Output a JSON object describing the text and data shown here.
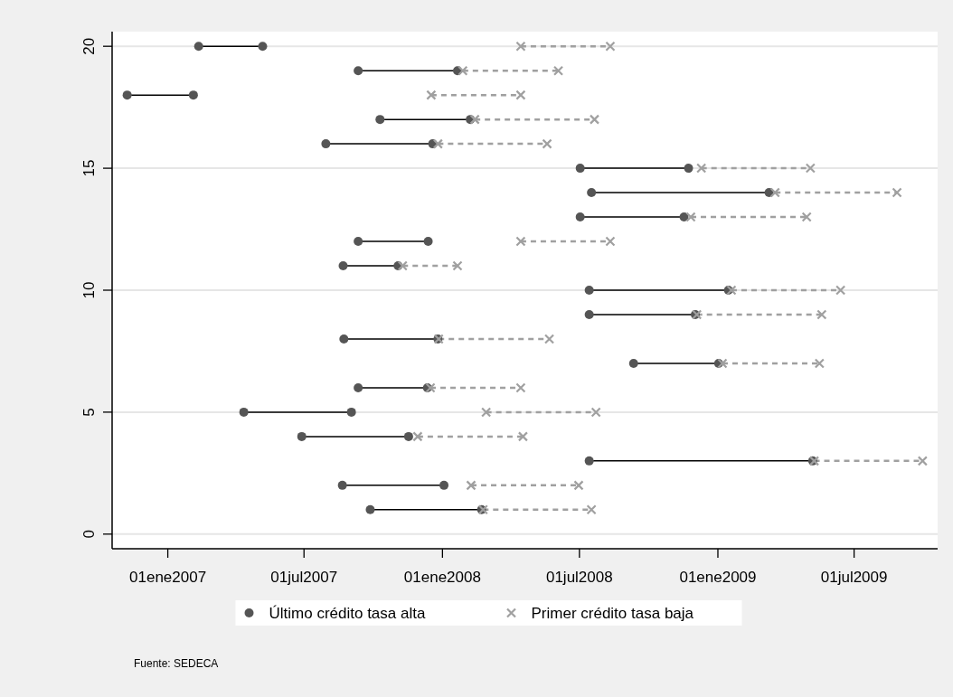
{
  "chart_data": {
    "type": "scatter",
    "xlim": [
      "2006-10-19",
      "2009-10-20"
    ],
    "ylim": [
      -0.6,
      20.6
    ],
    "xticks": [
      {
        "value": "2007-01-01",
        "label": "01ene2007"
      },
      {
        "value": "2007-07-01",
        "label": "01jul2007"
      },
      {
        "value": "2008-01-01",
        "label": "01ene2008"
      },
      {
        "value": "2008-07-01",
        "label": "01jul2008"
      },
      {
        "value": "2009-01-01",
        "label": "01ene2009"
      },
      {
        "value": "2009-07-01",
        "label": "01jul2009"
      }
    ],
    "yticks": [
      0,
      5,
      10,
      15,
      20
    ],
    "grid": "y",
    "legend": "bottom",
    "annotations": [
      "Fuente: SEDECA"
    ],
    "series": [
      {
        "type": "line",
        "color": "#000000",
        "line_style": "solid",
        "x": [
          "2007-02-11",
          "2007-05-07"
        ],
        "values": [
          20,
          20
        ]
      },
      {
        "type": "line",
        "color": "#000000",
        "line_style": "solid",
        "x": [
          "2007-09-11",
          "2008-01-21"
        ],
        "values": [
          19,
          19
        ]
      },
      {
        "type": "line",
        "color": "#000000",
        "line_style": "solid",
        "x": [
          "2006-11-08",
          "2007-02-04"
        ],
        "values": [
          18,
          18
        ]
      },
      {
        "type": "line",
        "color": "#000000",
        "line_style": "solid",
        "x": [
          "2007-10-10",
          "2008-02-07"
        ],
        "values": [
          17,
          17
        ]
      },
      {
        "type": "line",
        "color": "#000000",
        "line_style": "solid",
        "x": [
          "2007-07-30",
          "2007-12-19"
        ],
        "values": [
          16,
          16
        ]
      },
      {
        "type": "line",
        "color": "#000000",
        "line_style": "solid",
        "x": [
          "2008-07-02",
          "2008-11-23"
        ],
        "values": [
          15,
          15
        ]
      },
      {
        "type": "line",
        "color": "#000000",
        "line_style": "solid",
        "x": [
          "2008-07-17",
          "2009-03-10"
        ],
        "values": [
          14,
          14
        ]
      },
      {
        "type": "line",
        "color": "#000000",
        "line_style": "solid",
        "x": [
          "2008-07-02",
          "2008-11-17"
        ],
        "values": [
          13,
          13
        ]
      },
      {
        "type": "line",
        "color": "#000000",
        "line_style": "solid",
        "x": [
          "2007-09-11",
          "2007-12-13"
        ],
        "values": [
          12,
          12
        ]
      },
      {
        "type": "line",
        "color": "#000000",
        "line_style": "solid",
        "x": [
          "2007-08-22",
          "2007-11-03"
        ],
        "values": [
          11,
          11
        ]
      },
      {
        "type": "line",
        "color": "#000000",
        "line_style": "solid",
        "x": [
          "2008-07-14",
          "2009-01-15"
        ],
        "values": [
          10,
          10
        ]
      },
      {
        "type": "line",
        "color": "#000000",
        "line_style": "solid",
        "x": [
          "2008-07-14",
          "2008-12-02"
        ],
        "values": [
          9,
          9
        ]
      },
      {
        "type": "line",
        "color": "#000000",
        "line_style": "solid",
        "x": [
          "2007-08-23",
          "2007-12-26"
        ],
        "values": [
          8,
          8
        ]
      },
      {
        "type": "line",
        "color": "#000000",
        "line_style": "solid",
        "x": [
          "2008-09-11",
          "2009-01-02"
        ],
        "values": [
          7,
          7
        ]
      },
      {
        "type": "line",
        "color": "#000000",
        "line_style": "solid",
        "x": [
          "2007-09-11",
          "2007-12-12"
        ],
        "values": [
          6,
          6
        ]
      },
      {
        "type": "line",
        "color": "#000000",
        "line_style": "solid",
        "x": [
          "2007-04-12",
          "2007-09-02"
        ],
        "values": [
          5,
          5
        ]
      },
      {
        "type": "line",
        "color": "#000000",
        "line_style": "solid",
        "x": [
          "2007-06-28",
          "2007-11-17"
        ],
        "values": [
          4,
          4
        ]
      },
      {
        "type": "line",
        "color": "#000000",
        "line_style": "solid",
        "x": [
          "2008-07-14",
          "2009-05-07"
        ],
        "values": [
          3,
          3
        ]
      },
      {
        "type": "line",
        "color": "#000000",
        "line_style": "solid",
        "x": [
          "2007-08-21",
          "2008-01-03"
        ],
        "values": [
          2,
          2
        ]
      },
      {
        "type": "line",
        "color": "#000000",
        "line_style": "solid",
        "x": [
          "2007-09-27",
          "2008-02-22"
        ],
        "values": [
          1,
          1
        ]
      },
      {
        "type": "line",
        "color": "#a0a0a0",
        "line_style": "dashed",
        "x": [
          "2008-04-14",
          "2008-08-11"
        ],
        "values": [
          20,
          20
        ]
      },
      {
        "type": "line",
        "color": "#a0a0a0",
        "line_style": "dashed",
        "x": [
          "2008-01-28",
          "2008-06-03"
        ],
        "values": [
          19,
          19
        ]
      },
      {
        "type": "line",
        "color": "#a0a0a0",
        "line_style": "dashed",
        "x": [
          "2007-12-17",
          "2008-04-14"
        ],
        "values": [
          18,
          18
        ]
      },
      {
        "type": "line",
        "color": "#a0a0a0",
        "line_style": "dashed",
        "x": [
          "2008-02-13",
          "2008-07-21"
        ],
        "values": [
          17,
          17
        ]
      },
      {
        "type": "line",
        "color": "#a0a0a0",
        "line_style": "dashed",
        "x": [
          "2007-12-26",
          "2008-05-19"
        ],
        "values": [
          16,
          16
        ]
      },
      {
        "type": "line",
        "color": "#a0a0a0",
        "line_style": "dashed",
        "x": [
          "2008-12-10",
          "2009-05-04"
        ],
        "values": [
          15,
          15
        ]
      },
      {
        "type": "line",
        "color": "#a0a0a0",
        "line_style": "dashed",
        "x": [
          "2009-03-18",
          "2009-08-27"
        ],
        "values": [
          14,
          14
        ]
      },
      {
        "type": "line",
        "color": "#a0a0a0",
        "line_style": "dashed",
        "x": [
          "2008-11-26",
          "2009-04-29"
        ],
        "values": [
          13,
          13
        ]
      },
      {
        "type": "line",
        "color": "#a0a0a0",
        "line_style": "dashed",
        "x": [
          "2008-04-14",
          "2008-08-11"
        ],
        "values": [
          12,
          12
        ]
      },
      {
        "type": "line",
        "color": "#a0a0a0",
        "line_style": "dashed",
        "x": [
          "2007-11-09",
          "2008-01-21"
        ],
        "values": [
          11,
          11
        ]
      },
      {
        "type": "line",
        "color": "#a0a0a0",
        "line_style": "dashed",
        "x": [
          "2009-01-19",
          "2009-06-13"
        ],
        "values": [
          10,
          10
        ]
      },
      {
        "type": "line",
        "color": "#a0a0a0",
        "line_style": "dashed",
        "x": [
          "2008-12-04",
          "2009-05-19"
        ],
        "values": [
          9,
          9
        ]
      },
      {
        "type": "line",
        "color": "#a0a0a0",
        "line_style": "dashed",
        "x": [
          "2007-12-27",
          "2008-05-22"
        ],
        "values": [
          8,
          8
        ]
      },
      {
        "type": "line",
        "color": "#a0a0a0",
        "line_style": "dashed",
        "x": [
          "2009-01-07",
          "2009-05-16"
        ],
        "values": [
          7,
          7
        ]
      },
      {
        "type": "line",
        "color": "#a0a0a0",
        "line_style": "dashed",
        "x": [
          "2007-12-16",
          "2008-04-14"
        ],
        "values": [
          6,
          6
        ]
      },
      {
        "type": "line",
        "color": "#a0a0a0",
        "line_style": "dashed",
        "x": [
          "2008-02-28",
          "2008-07-23"
        ],
        "values": [
          5,
          5
        ]
      },
      {
        "type": "line",
        "color": "#a0a0a0",
        "line_style": "dashed",
        "x": [
          "2007-11-29",
          "2008-04-17"
        ],
        "values": [
          4,
          4
        ]
      },
      {
        "type": "line",
        "color": "#a0a0a0",
        "line_style": "dashed",
        "x": [
          "2009-05-09",
          "2009-09-30"
        ],
        "values": [
          3,
          3
        ]
      },
      {
        "type": "line",
        "color": "#a0a0a0",
        "line_style": "dashed",
        "x": [
          "2008-02-08",
          "2008-06-30"
        ],
        "values": [
          2,
          2
        ]
      },
      {
        "type": "line",
        "color": "#a0a0a0",
        "line_style": "dashed",
        "x": [
          "2008-02-24",
          "2008-07-17"
        ],
        "values": [
          1,
          1
        ]
      },
      {
        "name": "Último crédito tasa alta",
        "type": "scatter",
        "marker": "circle",
        "color": "#555555",
        "x": [
          "2007-02-11",
          "2007-05-07",
          "2007-09-11",
          "2008-01-21",
          "2006-11-08",
          "2007-02-04",
          "2007-10-10",
          "2008-02-07",
          "2007-07-30",
          "2007-12-19",
          "2008-07-02",
          "2008-11-23",
          "2008-07-17",
          "2009-03-10",
          "2008-07-02",
          "2008-11-17",
          "2007-09-11",
          "2007-12-13",
          "2007-08-22",
          "2007-11-03",
          "2008-07-14",
          "2009-01-15",
          "2008-07-14",
          "2008-12-02",
          "2007-08-23",
          "2007-12-26",
          "2008-09-11",
          "2009-01-02",
          "2007-09-11",
          "2007-12-12",
          "2007-04-12",
          "2007-09-02",
          "2007-06-28",
          "2007-11-17",
          "2008-07-14",
          "2009-05-07",
          "2007-08-21",
          "2008-01-03",
          "2007-09-27",
          "2008-02-22"
        ],
        "values": [
          20,
          20,
          19,
          19,
          18,
          18,
          17,
          17,
          16,
          16,
          15,
          15,
          14,
          14,
          13,
          13,
          12,
          12,
          11,
          11,
          10,
          10,
          9,
          9,
          8,
          8,
          7,
          7,
          6,
          6,
          5,
          5,
          4,
          4,
          3,
          3,
          2,
          2,
          1,
          1
        ]
      },
      {
        "name": "Primer crédito tasa baja",
        "type": "scatter",
        "marker": "cross",
        "color": "#a0a0a0",
        "x": [
          "2008-04-14",
          "2008-08-11",
          "2008-01-28",
          "2008-06-03",
          "2007-12-17",
          "2008-04-14",
          "2008-02-13",
          "2008-07-21",
          "2007-12-26",
          "2008-05-19",
          "2008-12-10",
          "2009-05-04",
          "2009-03-18",
          "2009-08-27",
          "2008-11-26",
          "2009-04-29",
          "2008-04-14",
          "2008-08-11",
          "2007-11-09",
          "2008-01-21",
          "2009-01-19",
          "2009-06-13",
          "2008-12-04",
          "2009-05-19",
          "2007-12-27",
          "2008-05-22",
          "2009-01-07",
          "2009-05-16",
          "2007-12-16",
          "2008-04-14",
          "2008-02-28",
          "2008-07-23",
          "2007-11-29",
          "2008-04-17",
          "2009-05-09",
          "2009-09-30",
          "2008-02-08",
          "2008-06-30",
          "2008-02-24",
          "2008-07-17"
        ],
        "values": [
          20,
          20,
          19,
          19,
          18,
          18,
          17,
          17,
          16,
          16,
          15,
          15,
          14,
          14,
          13,
          13,
          12,
          12,
          11,
          11,
          10,
          10,
          9,
          9,
          8,
          8,
          7,
          7,
          6,
          6,
          5,
          5,
          4,
          4,
          3,
          3,
          2,
          2,
          1,
          1
        ]
      }
    ]
  }
}
